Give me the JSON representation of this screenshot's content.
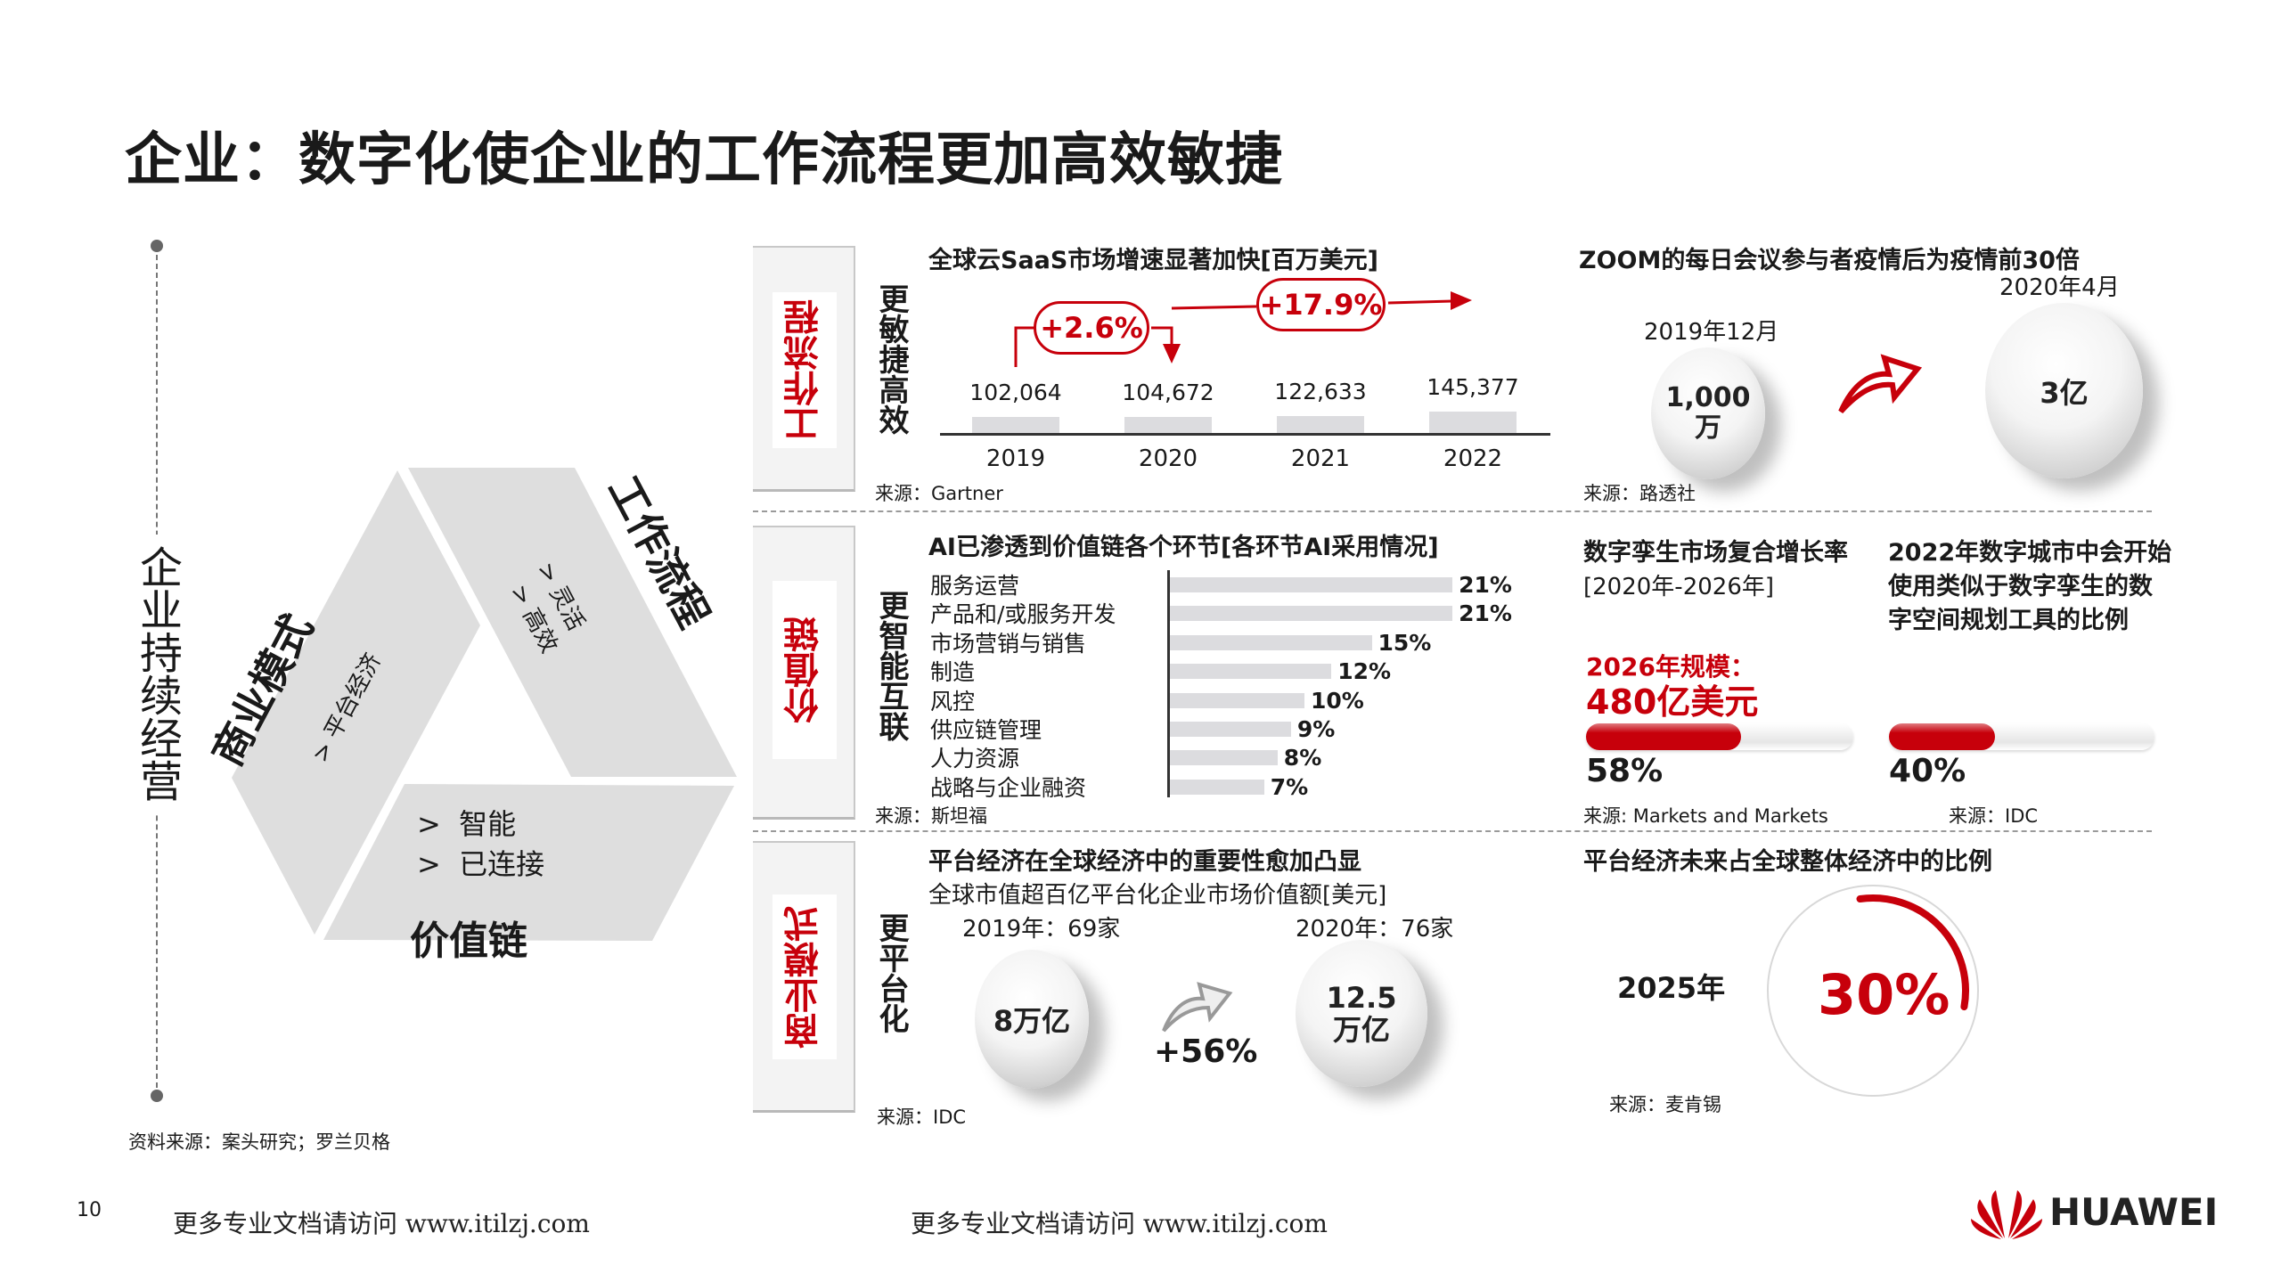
{
  "title": "企业：数字化使企业的工作流程更加高效敏捷",
  "left": {
    "vertical_label": "企业持续经营",
    "segments": {
      "workflow": {
        "label": "工作流程",
        "items": [
          "灵活",
          "高效"
        ]
      },
      "business": {
        "label": "商业模式",
        "items": [
          "平台经济"
        ]
      },
      "value_chain": {
        "label": "价值链",
        "items": [
          "智能",
          "已连接"
        ]
      }
    },
    "source": "资料来源：案头研究；罗兰贝格"
  },
  "rows": [
    {
      "tab": "工作流程",
      "side": "更敏捷高效"
    },
    {
      "tab": "价值链",
      "side": "更智能互联"
    },
    {
      "tab": "商业模式",
      "side": "更平台化"
    }
  ],
  "saas": {
    "title": "全球云SaaS市场增速显著加快[百万美元]",
    "source": "来源：Gartner",
    "growth": [
      "+2.6%",
      "+17.9%"
    ],
    "chart_data": {
      "type": "bar",
      "categories": [
        "2019",
        "2020",
        "2021",
        "2022"
      ],
      "values": [
        102064,
        104672,
        122633,
        145377
      ],
      "value_labels": [
        "102,064",
        "104,672",
        "122,633",
        "145,377"
      ],
      "title": "全球云SaaS市场增速显著加快[百万美元]"
    }
  },
  "zoom": {
    "title": "ZOOM的每日会议参与者疫情后为疫情前30倍",
    "before_date": "2019年12月",
    "before_value": "1,000万",
    "after_date": "2020年4月",
    "after_value": "3亿",
    "source": "来源：路透社",
    "accent": "#c7000b"
  },
  "ai": {
    "title": "AI已渗透到价值链各个环节[各环节AI采用情况]",
    "source": "来源：斯坦福",
    "chart_data": {
      "type": "bar",
      "orientation": "horizontal",
      "title": "AI已渗透到价值链各个环节[各环节AI采用情况]",
      "categories": [
        "服务运营",
        "产品和/或服务开发",
        "市场营销与销售",
        "制造",
        "风控",
        "供应链管理",
        "人力资源",
        "战略与企业融资"
      ],
      "values": [
        21,
        21,
        15,
        12,
        10,
        9,
        8,
        7
      ],
      "value_labels": [
        "21%",
        "21%",
        "15%",
        "12%",
        "10%",
        "9%",
        "8%",
        "7%"
      ]
    }
  },
  "twin": {
    "title": "数字孪生市场复合增长率",
    "period": "[2020年-2026年]",
    "scale_label": "2026年规模：",
    "scale_value": "480亿美元",
    "percent": 58,
    "percent_label": "58%",
    "source": "来源: Markets and Markets"
  },
  "city": {
    "title_lines": [
      "2022年数字城市中会开始",
      "使用类似于数字孪生的数",
      "字空间规划工具的比例"
    ],
    "percent": 40,
    "percent_label": "40%",
    "source": "来源：IDC"
  },
  "platform": {
    "title": "平台经济在全球经济中的重要性愈加凸显",
    "subtitle": "全球市值超百亿平台化企业市场价值额[美元]",
    "y2019": "2019年：69家",
    "y2020": "2020年：76家",
    "v2019": "8万亿",
    "v2020_lines": [
      "12.5",
      "万亿"
    ],
    "growth": "+56%",
    "source": "来源：IDC"
  },
  "future": {
    "title": "平台经济未来占全球整体经济中的比例",
    "year": "2025年",
    "percent": 30,
    "percent_label": "30%",
    "source": "来源：麦肯锡"
  },
  "footer": {
    "page": "10",
    "watermark": "更多专业文档请访问 www.itilzj.com",
    "brand": "HUAWEI"
  },
  "colors": {
    "accent": "#c7000b",
    "bar": "#dcdcdf",
    "shape": "#dedede"
  }
}
